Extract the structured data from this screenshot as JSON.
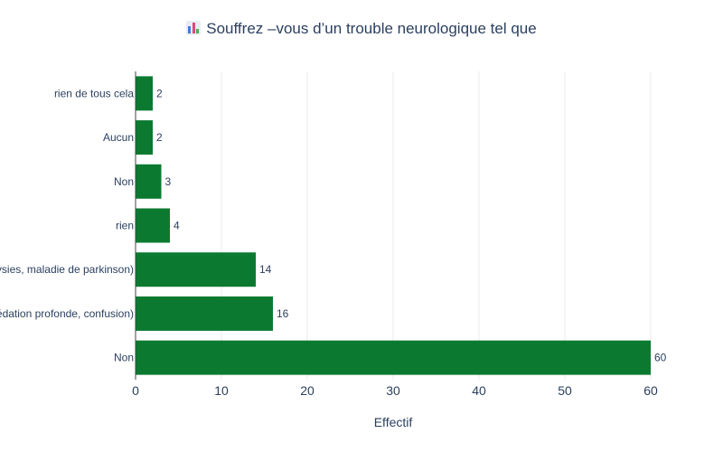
{
  "chart_data": {
    "type": "bar",
    "orientation": "horizontal",
    "title": "Souffrez –vous d’un trouble neurologique tel que",
    "title_icon": "bar-chart-icon",
    "categories": [
      "rien de tous cela",
      "Aucun",
      "Non",
      "rien",
      "ysies, maladie de parkinson)",
      "édation profonde, confusion)",
      "Non"
    ],
    "values": [
      2,
      2,
      3,
      4,
      14,
      16,
      60
    ],
    "xlabel": "Effectif",
    "ylabel": "",
    "xlim": [
      0,
      60
    ],
    "xticks": [
      0,
      10,
      20,
      30,
      40,
      50,
      60
    ],
    "grid": true,
    "bar_color": "#0b7a30"
  }
}
